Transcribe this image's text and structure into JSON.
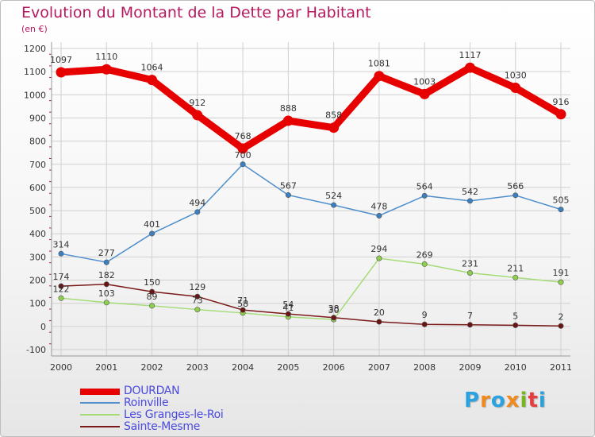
{
  "title": "Evolution du Montant de la Dette par Habitant",
  "subtitle": "(en €)",
  "logo": {
    "letters": [
      "P",
      "r",
      "o",
      "x",
      "i",
      "t",
      "i"
    ],
    "colors": [
      "#2aa1e0",
      "#f08a1c",
      "#2aa1e0",
      "#f08a1c",
      "#7ab51d",
      "#e63e3e",
      "#2aa1e0"
    ]
  },
  "chart_data": {
    "type": "line",
    "x": [
      "2000",
      "2001",
      "2002",
      "2003",
      "2004",
      "2005",
      "2006",
      "2007",
      "2008",
      "2009",
      "2010",
      "2011"
    ],
    "ylim": [
      -100,
      1200
    ],
    "yticks": [
      "-100",
      "0",
      "100",
      "200",
      "300",
      "400",
      "500",
      "600",
      "700",
      "800",
      "900",
      "1000",
      "1100",
      "1200"
    ],
    "grid": true,
    "legend_position": "bottom-left",
    "series": [
      {
        "name": "DOURDAN",
        "color": "#e60000",
        "thick": true,
        "values": [
          1097,
          1110,
          1064,
          912,
          768,
          888,
          858,
          1081,
          1003,
          1117,
          1030,
          916
        ],
        "labels": [
          "1097",
          "1110",
          "1064",
          "912",
          "768",
          "888",
          "858",
          "1081",
          "1003",
          "1117",
          "1030",
          "916"
        ]
      },
      {
        "name": "Roinville",
        "color": "#4f8fcc",
        "dot": "#3a7fc0",
        "values": [
          314,
          277,
          401,
          494,
          700,
          567,
          524,
          478,
          564,
          542,
          566,
          505
        ],
        "labels": [
          "314",
          "277",
          "401",
          "494",
          "700",
          "567",
          "524",
          "478",
          "564",
          "542",
          "566",
          "505"
        ]
      },
      {
        "name": "Les Granges-le-Roi",
        "color": "#a6dc78",
        "dot": "#8ed04e",
        "values": [
          122,
          103,
          89,
          73,
          58,
          41,
          30,
          294,
          269,
          231,
          211,
          191
        ],
        "labels": [
          "122",
          "103",
          "89",
          "73",
          "58",
          "41",
          "30",
          "294",
          "269",
          "231",
          "211",
          "191"
        ]
      },
      {
        "name": "Sainte-Mesme",
        "color": "#7a1a1a",
        "dot": "#6b1414",
        "values": [
          174,
          182,
          150,
          129,
          71,
          54,
          38,
          20,
          9,
          7,
          5,
          2
        ],
        "labels": [
          "174",
          "182",
          "150",
          "129",
          "71",
          "54",
          "38",
          "20",
          "9",
          "7",
          "5",
          "2"
        ]
      }
    ]
  }
}
